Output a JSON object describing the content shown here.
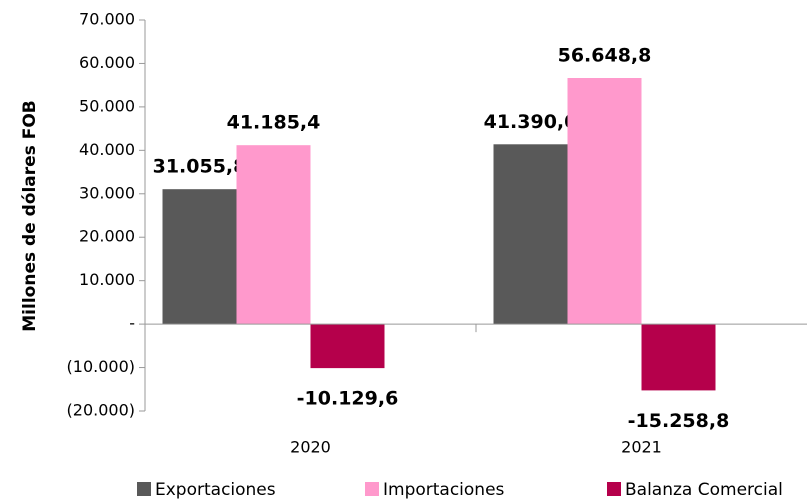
{
  "chart_data": {
    "type": "bar",
    "y_label": "Millones de dólares FOB",
    "categories": [
      "2020",
      "2021"
    ],
    "series": [
      {
        "name": "Exportaciones",
        "color": "#595959",
        "values": [
          31055.8,
          41390.0
        ],
        "value_labels": [
          "31.055,8",
          "41.390,0"
        ]
      },
      {
        "name": "Importaciones",
        "color": "#ff99cc",
        "values": [
          41185.4,
          56648.8
        ],
        "value_labels": [
          "41.185,4",
          "56.648,8"
        ]
      },
      {
        "name": "Balanza Comercial",
        "color": "#b5004b",
        "values": [
          -10129.6,
          -15258.8
        ],
        "value_labels": [
          "-10.129,6",
          "-15.258,8"
        ]
      }
    ],
    "ylim": [
      -20000,
      70000
    ],
    "yticks": [
      {
        "value": -20000,
        "label": "(20.000)"
      },
      {
        "value": -10000,
        "label": "(10.000)"
      },
      {
        "value": 0,
        "label": "-"
      },
      {
        "value": 10000,
        "label": "10.000"
      },
      {
        "value": 20000,
        "label": "20.000"
      },
      {
        "value": 30000,
        "label": "30.000"
      },
      {
        "value": 40000,
        "label": "40.000"
      },
      {
        "value": 50000,
        "label": "50.000"
      },
      {
        "value": 60000,
        "label": "60.000"
      },
      {
        "value": 70000,
        "label": "70.000"
      }
    ],
    "grid": false,
    "legend": "bottom"
  }
}
